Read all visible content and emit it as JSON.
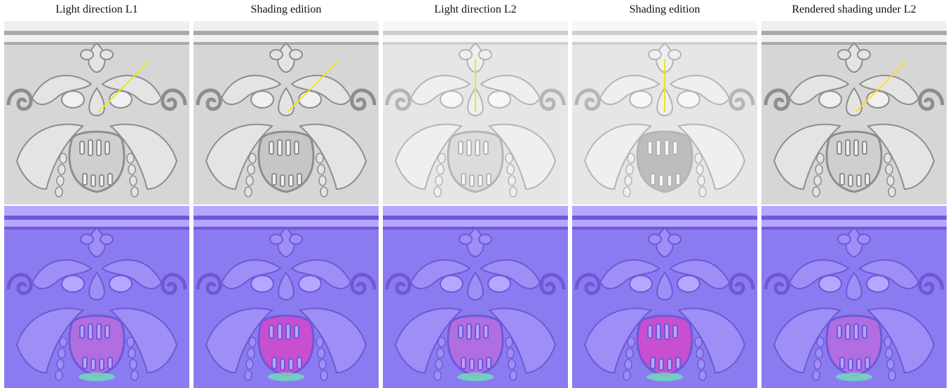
{
  "columns": [
    {
      "title": "Light direction L1",
      "shading_variant": "base",
      "light_line": "diagonal"
    },
    {
      "title": "Shading edition",
      "shading_variant": "edited",
      "light_line": "diagonal"
    },
    {
      "title": "Light direction L2",
      "shading_variant": "bright",
      "light_line": "vertical"
    },
    {
      "title": "Shading edition",
      "shading_variant": "bright-edited",
      "light_line": "vertical"
    },
    {
      "title": "Rendered shading under L2",
      "shading_variant": "base",
      "light_line": "diagonal"
    }
  ],
  "colors": {
    "shading_bg": "#d6d6d6",
    "shading_bright_bg": "#e6e6e6",
    "normal_bg": "#8a7cf0",
    "normal_light": "#b7a6ff",
    "normal_dark": "#6e58d8",
    "light_line": "#f3e31b"
  }
}
